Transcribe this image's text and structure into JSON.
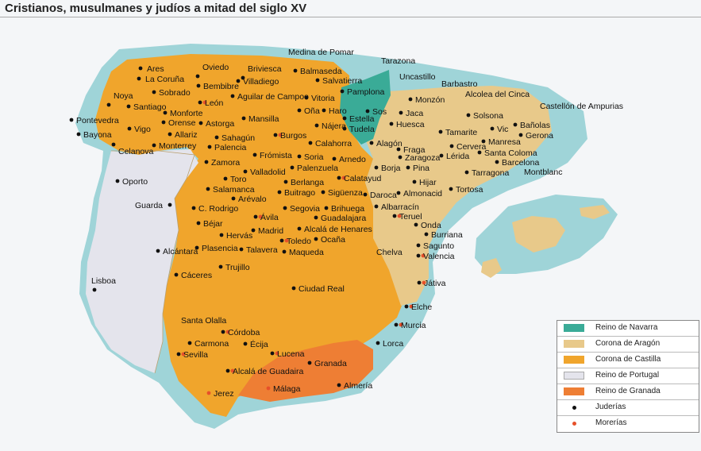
{
  "title": "Cristianos, musulmanes y judíos a mitad del siglo XV",
  "colors": {
    "sea": "#9fd4d8",
    "background": "#f4f6f8",
    "navarra": "#3aab97",
    "aragon": "#e8c98a",
    "castilla": "#f0a52c",
    "portugal": "#e4e4ec",
    "granada": "#ee7e34",
    "juderia_dot": "#111111",
    "moreria_dot": "#e6502a"
  },
  "legend": [
    {
      "label": "Reino de Navarra",
      "type": "swatch",
      "color": "#3aab97"
    },
    {
      "label": "Corona de Aragón",
      "type": "swatch",
      "color": "#e8c98a"
    },
    {
      "label": "Corona de Castilla",
      "type": "swatch",
      "color": "#f0a52c"
    },
    {
      "label": "Reino de Portugal",
      "type": "swatch",
      "color": "#e4e4ec"
    },
    {
      "label": "Reino de Granada",
      "type": "swatch",
      "color": "#ee7e34"
    },
    {
      "label": "Juderías",
      "type": "dot",
      "color": "#111111"
    },
    {
      "label": "Morerías",
      "type": "dot",
      "color": "#e6502a"
    }
  ],
  "places": [
    "Ares",
    "La Coruña",
    "Oviedo",
    "Bembibre",
    "Sobrado",
    "Noya",
    "Santiago",
    "Pontevedra",
    "Monforte",
    "Orense",
    "Vigo",
    "Allariz",
    "Bayona",
    "Celanova",
    "Monterrey",
    "León",
    "Astorga",
    "Briviesca",
    "Villadiego",
    "Medina de Pomar",
    "Balmaseda",
    "Salvatierra",
    "Tarazona",
    "Pamplona",
    "Uncastillo",
    "Aguilar de Campoo",
    "Oña",
    "Haro",
    "Vitoria",
    "Mansilla",
    "Estella",
    "Sos",
    "Barbastro",
    "Monzón",
    "Jaca",
    "Huesca",
    "Alcolea del Cinca",
    "Castellón de Ampurias",
    "Solsona",
    "Bañolas",
    "Vic",
    "Gerona",
    "Sahagún",
    "Burgos",
    "Nájera",
    "Tudela",
    "Calahorra",
    "Alagón",
    "Tamarite",
    "Cervera",
    "Manresa",
    "Santa Coloma",
    "Barcelona",
    "Lérida",
    "Fraga",
    "Zaragoza",
    "Montblanc",
    "Tarragona",
    "Palencia",
    "Frómista",
    "Soria",
    "Arnedo",
    "Borja",
    "Pina",
    "Zamora",
    "Valladolid",
    "Palenzuela",
    "Calatayud",
    "Hijar",
    "Tortosa",
    "Toro",
    "Berlanga",
    "Almonacid",
    "Daroca",
    "Salamanca",
    "Buitrago",
    "Sigüenza",
    "Arévalo",
    "Segovia",
    "C. Rodrigo",
    "Brihuega",
    "Albarracín",
    "Teruel",
    "Ávila",
    "Guadalajara",
    "Onda",
    "Burriana",
    "Béjar",
    "Madrid",
    "Alcalá de Henares",
    "Hervás",
    "Toledo",
    "Ocaña",
    "Sagunto",
    "Maqueda",
    "Valencia",
    "Plasencia",
    "Talavera",
    "Chelva",
    "Alcántara",
    "Trujillo",
    "Cáceres",
    "Játiva",
    "Ciudad Real",
    "Elche",
    "Santa Olalla",
    "Murcia",
    "Córdoba",
    "Carmona",
    "Écija",
    "Lucena",
    "Lorca",
    "Sevilla",
    "Granada",
    "Alcalá de Guadaira",
    "Almería",
    "Jerez",
    "Málaga",
    "Oporto",
    "Guarda",
    "Lisboa"
  ]
}
